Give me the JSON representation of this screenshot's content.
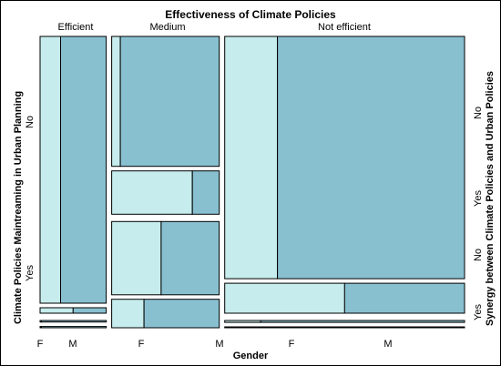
{
  "colors": {
    "F": "#c6eced",
    "M": "#88c0d0",
    "stroke": "#000000",
    "background": "#ffffff"
  },
  "chart_data": {
    "type": "mosaic",
    "title": "Effectiveness of Climate Policies",
    "xlabel": "Gender",
    "ylabel_left": "Climate Policies Maintreaming in Urban Planning",
    "ylabel_right": "Synergy between Climate Policies and Urban Policies",
    "effectiveness_levels": [
      "Efficient",
      "Medium",
      "Not efficient"
    ],
    "maintreaming_levels": [
      "No",
      "Yes"
    ],
    "synergy_levels": [
      "No",
      "Yes"
    ],
    "gender_levels": [
      "F",
      "M"
    ],
    "gender_tick_labels": [
      [
        "F",
        "M"
      ],
      [
        "F",
        "M"
      ],
      [
        "F",
        "M"
      ]
    ],
    "maintreaming_labels": [
      "No",
      "Yes"
    ],
    "synergy_labels": [
      "No",
      "Yes",
      "No",
      "Yes"
    ],
    "effectiveness_shares": [
      0.16,
      0.26,
      0.58
    ],
    "maintreaming_share_no": [
      0.99,
      0.63,
      0.99
    ],
    "synergy_share_no": {
      "Efficient": [
        0.98,
        0.55
      ],
      "Medium": [
        0.75,
        0.72
      ],
      "Not efficient": [
        0.89,
        0.68
      ]
    },
    "female_share": {
      "Efficient": {
        "No": [
          0.31,
          0.5
        ],
        "Yes": [
          0.02,
          0.02
        ]
      },
      "Medium": {
        "No": [
          0.08,
          0.75
        ],
        "Yes": [
          0.46,
          0.3
        ]
      },
      "Not efficient": {
        "No": [
          0.22,
          0.5
        ],
        "Yes": [
          0.15,
          0.2
        ]
      }
    }
  }
}
